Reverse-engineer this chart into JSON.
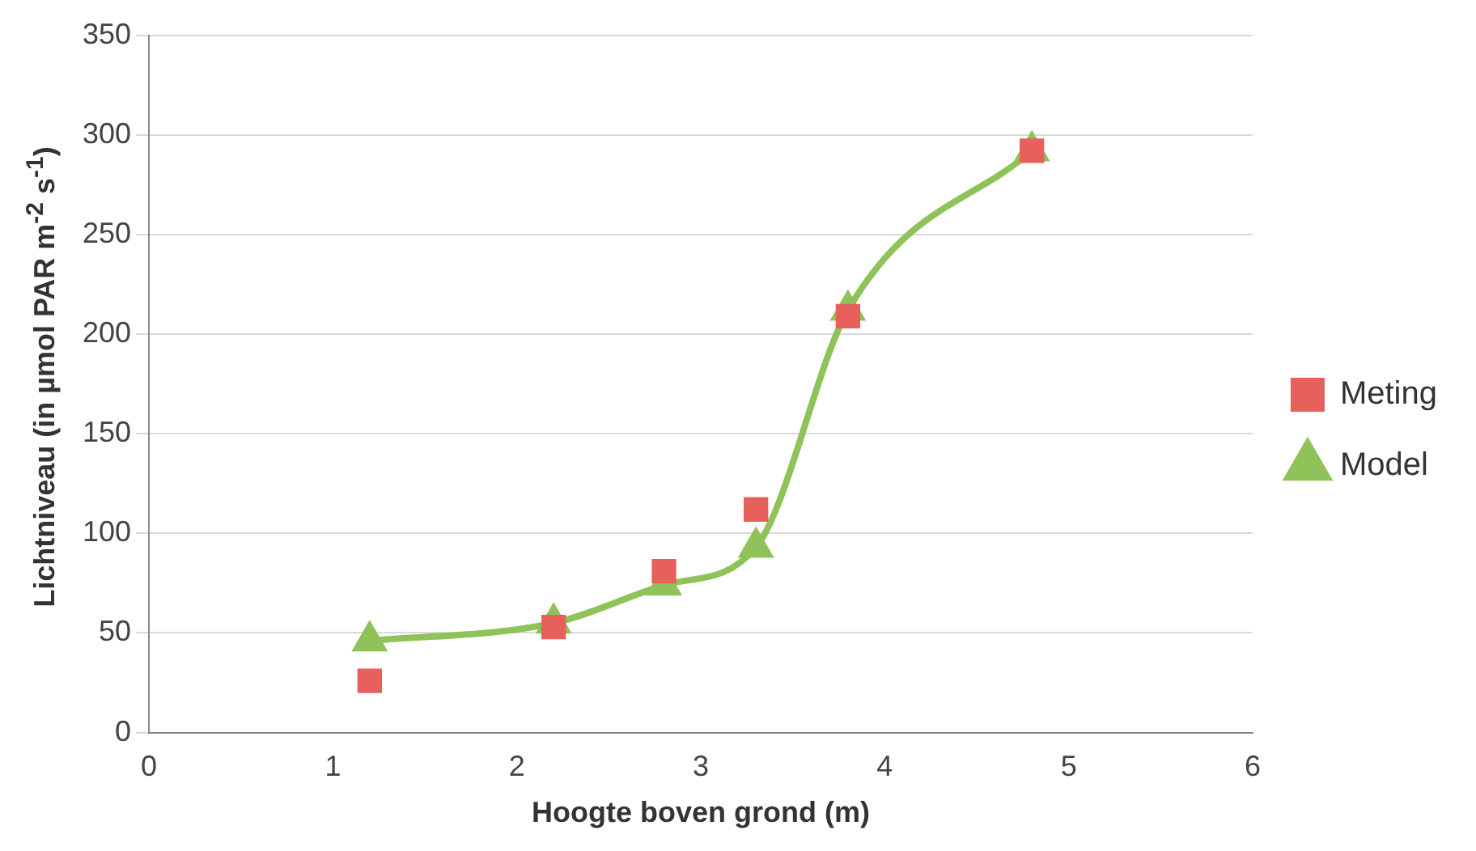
{
  "chart_data": {
    "type": "line",
    "xlabel": "Hoogte boven grond (m)",
    "ylabel": "Lichtniveau (in µmol PAR m$^{-2}$ s$^{-1}$)",
    "xlim": [
      0,
      6
    ],
    "xticks": [
      0,
      1,
      2,
      3,
      4,
      5,
      6
    ],
    "ylim": [
      0,
      350
    ],
    "yticks": [
      0,
      50,
      100,
      150,
      200,
      250,
      300,
      350
    ],
    "grid": "y",
    "legend": "right",
    "series": [
      {
        "name": "Meting",
        "type": "scatter",
        "marker": "square",
        "color": "#e8605c",
        "x": [
          1.2,
          2.2,
          2.8,
          3.3,
          3.8,
          4.8
        ],
        "values": [
          26,
          53,
          81,
          112,
          209,
          292
        ]
      },
      {
        "name": "Model",
        "type": "line",
        "marker": "triangle",
        "line_style": "solid",
        "color": "#8fc35a",
        "x": [
          1.2,
          2.2,
          2.8,
          3.3,
          3.8,
          4.8
        ],
        "values": [
          46,
          55,
          74,
          93,
          212,
          292
        ]
      }
    ]
  }
}
